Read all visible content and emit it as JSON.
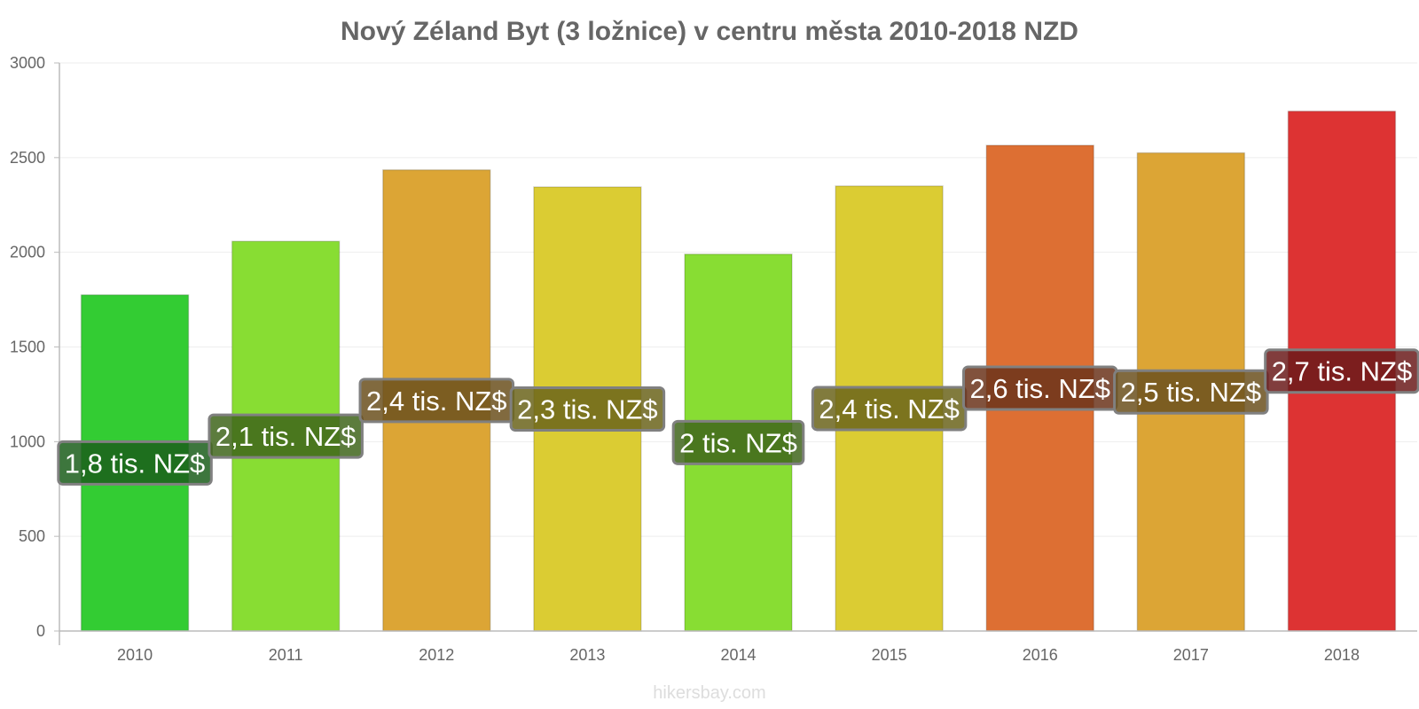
{
  "chart_data": {
    "type": "bar",
    "title": "Nový Zéland Byt (3 ložnice) v centru města 2010-2018 NZD",
    "categories": [
      "2010",
      "2011",
      "2012",
      "2013",
      "2014",
      "2015",
      "2016",
      "2017",
      "2018"
    ],
    "values": [
      1775,
      2058,
      2435,
      2345,
      1990,
      2350,
      2565,
      2525,
      2745
    ],
    "data_labels": [
      "1,8 tis. NZ$",
      "2,1 tis. NZ$",
      "2,4 tis. NZ$",
      "2,3 tis. NZ$",
      "2 tis. NZ$",
      "2,4 tis. NZ$",
      "2,6 tis. NZ$",
      "2,5 tis. NZ$",
      "2,7 tis. NZ$"
    ],
    "colors": [
      "#33cc33",
      "#88dd33",
      "#dca535",
      "#dbcc33",
      "#88dd33",
      "#dbcc33",
      "#dd6f33",
      "#dca535",
      "#dd3333"
    ],
    "label_bg_colors": [
      "#1b5e1b",
      "#40651b",
      "#6b501d",
      "#6b641b",
      "#40651b",
      "#6b641b",
      "#6b341b",
      "#6b501d",
      "#6b1b1b"
    ],
    "y_ticks": [
      0,
      500,
      1000,
      1500,
      2000,
      2500,
      3000
    ],
    "ylim": [
      0,
      3000
    ],
    "xlabel": "",
    "ylabel": "",
    "grid": true,
    "legend": "none"
  },
  "credit": "hikersbay.com"
}
